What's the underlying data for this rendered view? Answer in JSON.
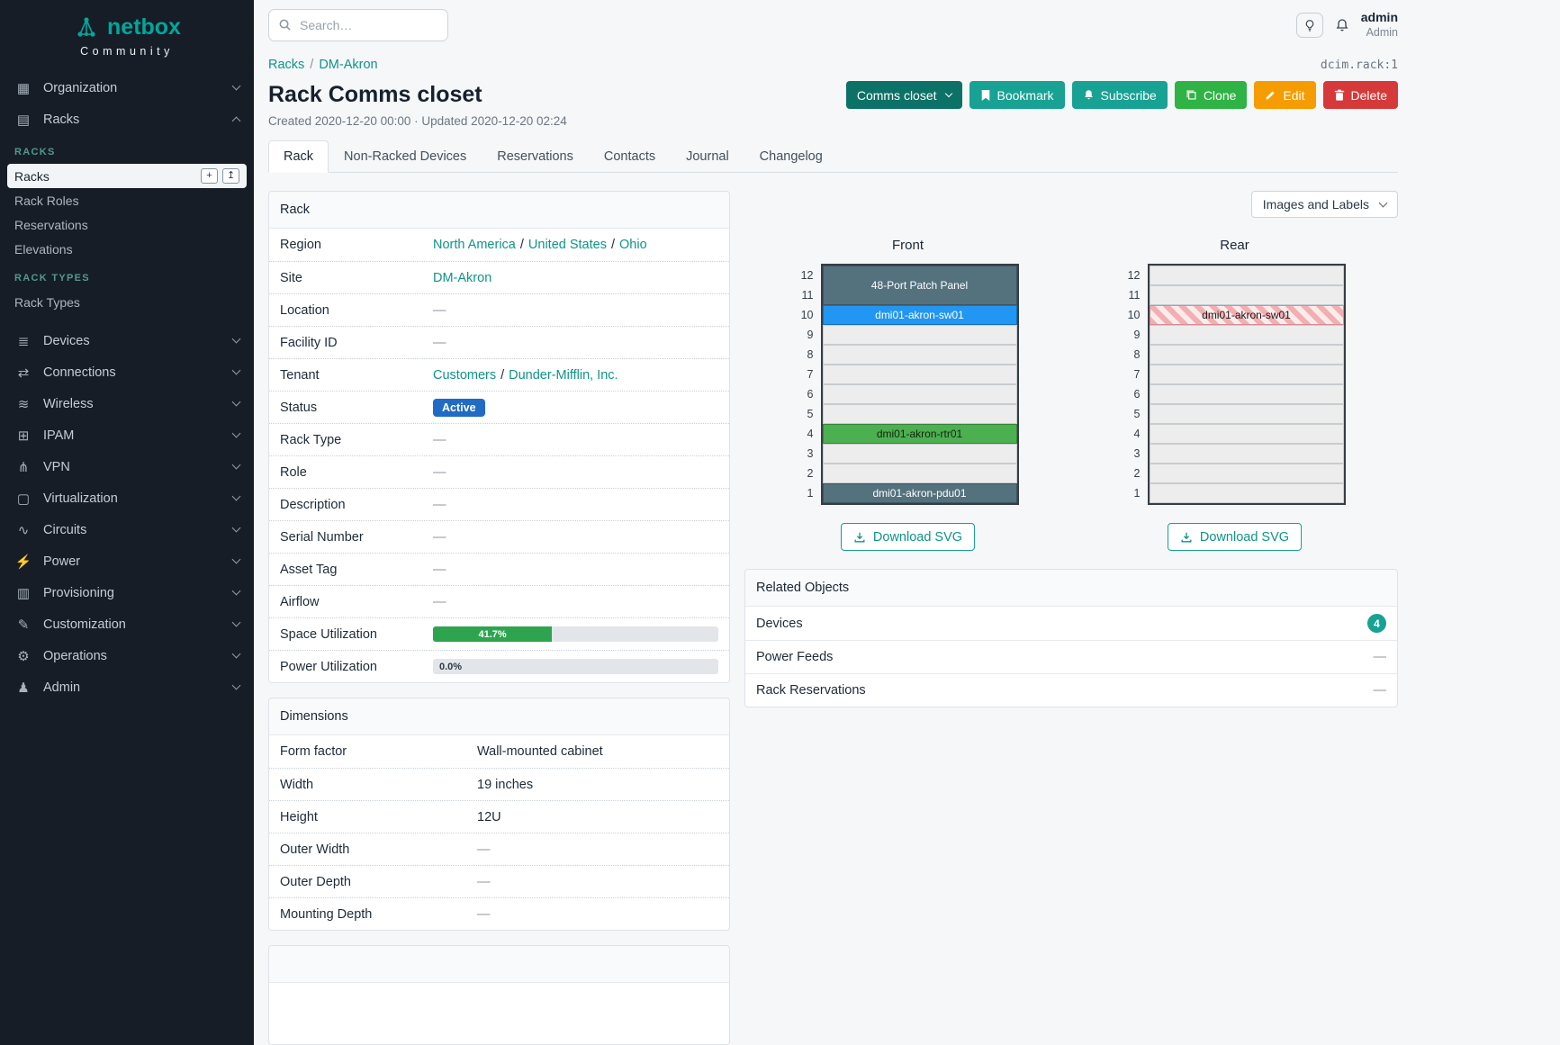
{
  "colors": {
    "brand_teal": "#00a79a",
    "link_teal": "#0f9488",
    "button_dark_teal": "#0c7166",
    "button_teal": "#17a294",
    "button_green": "#2fb344",
    "button_amber": "#f59c00",
    "button_red": "#d63939",
    "status_active_blue": "#206bc4",
    "progress_green": "#2fa44f",
    "sidebar_bg": "#161d27",
    "device_slate": "#54717e",
    "device_blue": "#2196f3",
    "device_green": "#4caf50",
    "stripe_red": "#f3aeb2"
  },
  "topbar": {
    "search_placeholder": "Search…",
    "user_name": "admin",
    "user_role": "Admin"
  },
  "sidebar": {
    "logo_text": "netbox",
    "logo_subtext": "Community",
    "items_top": [
      {
        "label": "Organization",
        "icon": "organization-icon"
      },
      {
        "label": "Racks",
        "icon": "racks-icon",
        "expanded": true
      }
    ],
    "racks_group": {
      "heading": "RACKS",
      "items": [
        {
          "label": "Racks",
          "active": true
        },
        {
          "label": "Rack Roles"
        },
        {
          "label": "Reservations"
        },
        {
          "label": "Elevations"
        }
      ]
    },
    "rack_types_group": {
      "heading": "RACK TYPES",
      "items": [
        {
          "label": "Rack Types"
        }
      ]
    },
    "items_bottom": [
      {
        "label": "Devices",
        "icon": "devices-icon"
      },
      {
        "label": "Connections",
        "icon": "connections-icon"
      },
      {
        "label": "Wireless",
        "icon": "wireless-icon"
      },
      {
        "label": "IPAM",
        "icon": "ipam-icon"
      },
      {
        "label": "VPN",
        "icon": "vpn-icon"
      },
      {
        "label": "Virtualization",
        "icon": "virtualization-icon"
      },
      {
        "label": "Circuits",
        "icon": "circuits-icon"
      },
      {
        "label": "Power",
        "icon": "power-icon"
      },
      {
        "label": "Provisioning",
        "icon": "provisioning-icon"
      },
      {
        "label": "Customization",
        "icon": "customization-icon"
      },
      {
        "label": "Operations",
        "icon": "operations-icon"
      },
      {
        "label": "Admin",
        "icon": "admin-icon"
      }
    ]
  },
  "common": {
    "sep": "/",
    "dash": "—"
  },
  "page": {
    "breadcrumb": {
      "first": "Racks",
      "second": "DM-Akron"
    },
    "object_ref": "dcim.rack:1",
    "title": "Rack Comms closet",
    "meta": "Created 2020-12-20 00:00 · Updated 2020-12-20 02:24",
    "actions": {
      "group_label": "Comms closet",
      "bookmark": "Bookmark",
      "subscribe": "Subscribe",
      "clone": "Clone",
      "edit": "Edit",
      "delete": "Delete"
    },
    "tabs": [
      {
        "label": "Rack",
        "active": true
      },
      {
        "label": "Non-Racked Devices"
      },
      {
        "label": "Reservations"
      },
      {
        "label": "Contacts"
      },
      {
        "label": "Journal"
      },
      {
        "label": "Changelog"
      }
    ]
  },
  "rack_panel": {
    "title": "Rack",
    "rows": {
      "region": {
        "label": "Region",
        "links": [
          "North America",
          "United States",
          "Ohio"
        ]
      },
      "site": {
        "label": "Site",
        "link": "DM-Akron"
      },
      "location": {
        "label": "Location"
      },
      "facility_id": {
        "label": "Facility ID"
      },
      "tenant": {
        "label": "Tenant",
        "links": [
          "Customers",
          "Dunder-Mifflin, Inc."
        ]
      },
      "status": {
        "label": "Status",
        "badge": "Active"
      },
      "rack_type": {
        "label": "Rack Type"
      },
      "role": {
        "label": "Role"
      },
      "description": {
        "label": "Description"
      },
      "serial": {
        "label": "Serial Number"
      },
      "asset_tag": {
        "label": "Asset Tag"
      },
      "airflow": {
        "label": "Airflow"
      },
      "space": {
        "label": "Space Utilization",
        "percent": 41.7,
        "text": "41.7%"
      },
      "power": {
        "label": "Power Utilization",
        "percent": 0.0,
        "text": "0.0%"
      }
    }
  },
  "dimensions_panel": {
    "title": "Dimensions",
    "rows": [
      {
        "label": "Form factor",
        "value": "Wall-mounted cabinet"
      },
      {
        "label": "Width",
        "value": "19 inches"
      },
      {
        "label": "Height",
        "value": "12U"
      },
      {
        "label": "Outer Width",
        "value": "—"
      },
      {
        "label": "Outer Depth",
        "value": "—"
      },
      {
        "label": "Mounting Depth",
        "value": "—"
      }
    ]
  },
  "elevation": {
    "view_selector_label": "Images and Labels",
    "download_label": "Download SVG",
    "units": 12,
    "front": {
      "title": "Front",
      "cells": [
        {
          "span": 2,
          "label": "48-Port Patch Panel",
          "bg": "#54717e",
          "fg": "#ffffff"
        },
        {
          "span": 1,
          "label": "dmi01-akron-sw01",
          "bg": "#2196f3",
          "fg": "#ffffff"
        },
        {
          "span": 1
        },
        {
          "span": 1
        },
        {
          "span": 1
        },
        {
          "span": 1
        },
        {
          "span": 1
        },
        {
          "span": 1,
          "label": "dmi01-akron-rtr01",
          "bg": "#4caf50",
          "fg": "#13240f"
        },
        {
          "span": 1
        },
        {
          "span": 1
        },
        {
          "span": 1,
          "label": "dmi01-akron-pdu01",
          "bg": "#54717e",
          "fg": "#ffffff"
        }
      ]
    },
    "rear": {
      "title": "Rear",
      "cells": [
        {
          "span": 1
        },
        {
          "span": 1
        },
        {
          "span": 1,
          "label": "dmi01-akron-sw01",
          "striped": true,
          "fg": "#1a1a1a"
        },
        {
          "span": 1
        },
        {
          "span": 1
        },
        {
          "span": 1
        },
        {
          "span": 1
        },
        {
          "span": 1
        },
        {
          "span": 1
        },
        {
          "span": 1
        },
        {
          "span": 1
        },
        {
          "span": 1
        }
      ]
    }
  },
  "related_objects": {
    "title": "Related Objects",
    "rows": [
      {
        "label": "Devices",
        "count": "4"
      },
      {
        "label": "Power Feeds",
        "value": "—"
      },
      {
        "label": "Rack Reservations",
        "value": "—"
      }
    ]
  }
}
